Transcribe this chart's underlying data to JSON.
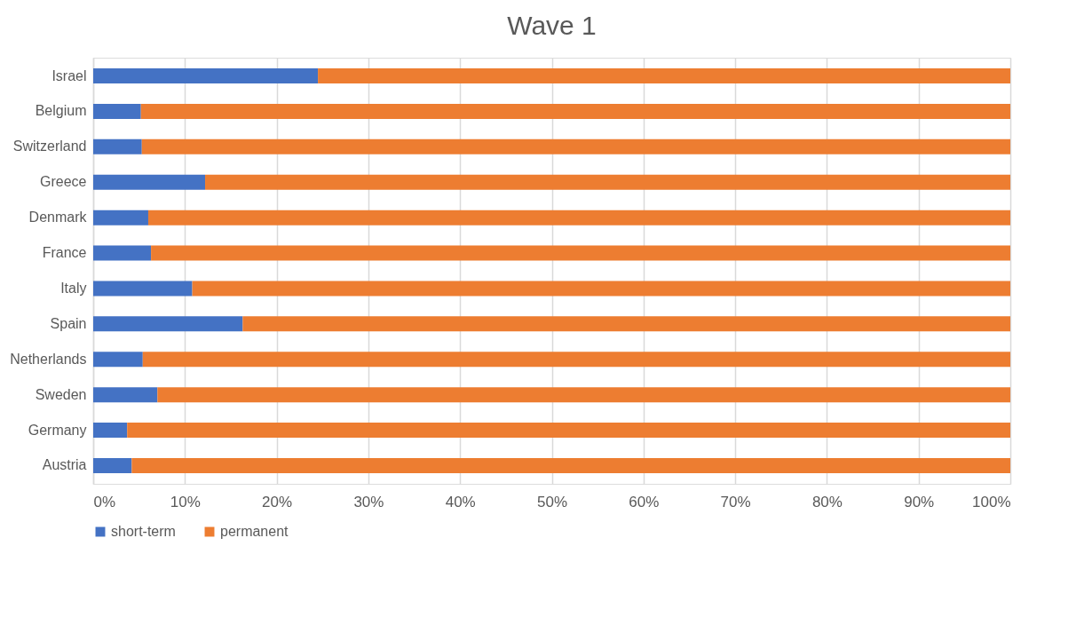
{
  "chart_data": {
    "type": "bar",
    "orientation": "horizontal",
    "stacked": true,
    "title": "Wave 1",
    "categories": [
      "Israel",
      "Belgium",
      "Switzerland",
      "Greece",
      "Denmark",
      "France",
      "Italy",
      "Spain",
      "Netherlands",
      "Sweden",
      "Germany",
      "Austria"
    ],
    "series": [
      {
        "name": "short-term",
        "color": "#4472c4",
        "values": [
          24.5,
          5.2,
          5.3,
          12.2,
          6.0,
          6.3,
          10.8,
          16.3,
          5.4,
          7.0,
          3.7,
          4.2
        ]
      },
      {
        "name": "permanent",
        "color": "#ed7d31",
        "values": [
          75.5,
          94.8,
          94.7,
          87.8,
          94.0,
          93.7,
          89.2,
          83.7,
          94.6,
          93.0,
          96.3,
          95.8
        ]
      }
    ],
    "xlim": [
      0,
      100
    ],
    "xticks": [
      {
        "value": 0,
        "label": "0%"
      },
      {
        "value": 10,
        "label": "10%"
      },
      {
        "value": 20,
        "label": "20%"
      },
      {
        "value": 30,
        "label": "30%"
      },
      {
        "value": 40,
        "label": "40%"
      },
      {
        "value": 50,
        "label": "50%"
      },
      {
        "value": 60,
        "label": "60%"
      },
      {
        "value": 70,
        "label": "70%"
      },
      {
        "value": 80,
        "label": "80%"
      },
      {
        "value": 90,
        "label": "90%"
      },
      {
        "value": 100,
        "label": "100%"
      }
    ],
    "grid": "x",
    "legend": "bottom"
  }
}
